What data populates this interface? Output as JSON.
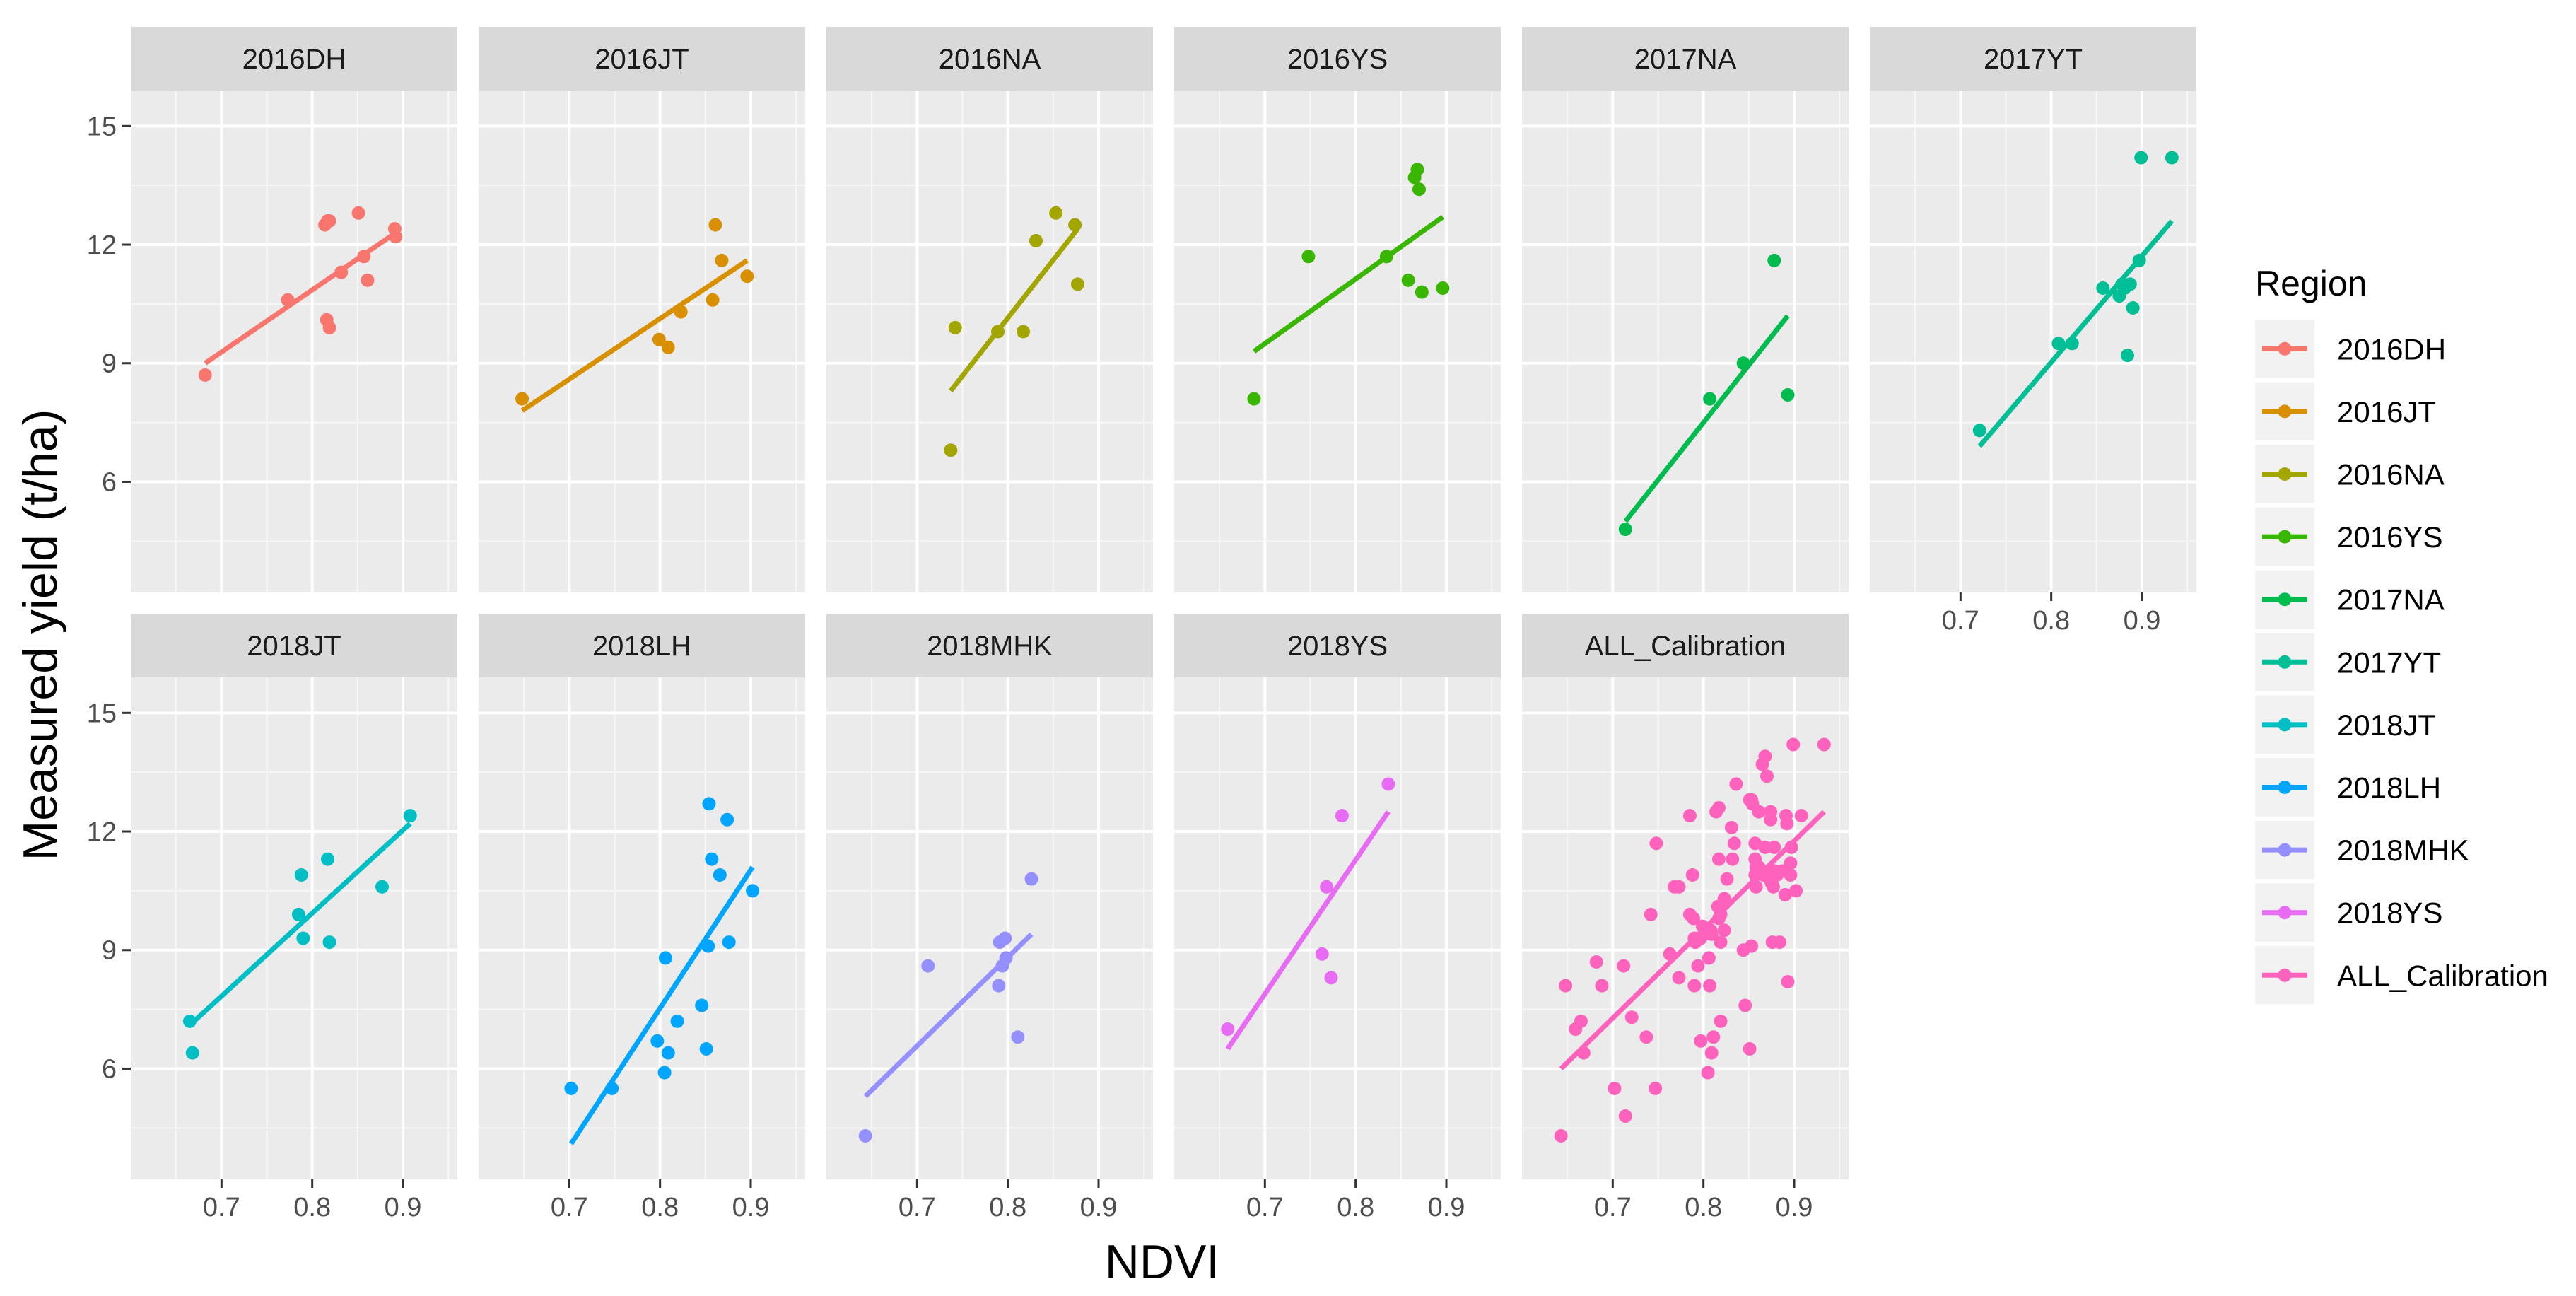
{
  "chart_data": {
    "type": "scatter",
    "xlabel": "NDVI",
    "ylabel": "Measured yield (t/ha)",
    "xlim": [
      0.6,
      0.96
    ],
    "ylim": [
      3.2,
      15.9
    ],
    "x_ticks": [
      0.7,
      0.8,
      0.9
    ],
    "x_tick_labels": [
      "0.7",
      "0.8",
      "0.9"
    ],
    "y_ticks": [
      6,
      9,
      12,
      15
    ],
    "y_tick_labels": [
      "6",
      "9",
      "12",
      "15"
    ],
    "legend": {
      "title": "Region",
      "position": "right"
    },
    "panels": [
      {
        "name": "2016DH",
        "color": "#F8766D",
        "points": [
          [
            0.682,
            8.7
          ],
          [
            0.773,
            10.6
          ],
          [
            0.814,
            12.5
          ],
          [
            0.817,
            12.6
          ],
          [
            0.819,
            12.6
          ],
          [
            0.816,
            10.1
          ],
          [
            0.819,
            9.9
          ],
          [
            0.832,
            11.3
          ],
          [
            0.851,
            12.8
          ],
          [
            0.857,
            11.7
          ],
          [
            0.861,
            11.1
          ],
          [
            0.891,
            12.4
          ],
          [
            0.892,
            12.2
          ]
        ],
        "fit": [
          [
            0.682,
            9.0
          ],
          [
            0.892,
            12.3
          ]
        ]
      },
      {
        "name": "2016JT",
        "color": "#D89000",
        "points": [
          [
            0.648,
            8.1
          ],
          [
            0.799,
            9.6
          ],
          [
            0.809,
            9.4
          ],
          [
            0.823,
            10.3
          ],
          [
            0.858,
            10.6
          ],
          [
            0.861,
            12.5
          ],
          [
            0.868,
            11.6
          ],
          [
            0.896,
            11.2
          ]
        ],
        "fit": [
          [
            0.648,
            7.8
          ],
          [
            0.896,
            11.6
          ]
        ]
      },
      {
        "name": "2016NA",
        "color": "#A3A500",
        "points": [
          [
            0.737,
            6.8
          ],
          [
            0.742,
            9.9
          ],
          [
            0.789,
            9.8
          ],
          [
            0.817,
            9.8
          ],
          [
            0.831,
            12.1
          ],
          [
            0.853,
            12.8
          ],
          [
            0.874,
            12.5
          ],
          [
            0.877,
            11.0
          ]
        ],
        "fit": [
          [
            0.737,
            8.3
          ],
          [
            0.877,
            12.4
          ]
        ]
      },
      {
        "name": "2016YS",
        "color": "#39B600",
        "points": [
          [
            0.688,
            8.1
          ],
          [
            0.748,
            11.7
          ],
          [
            0.834,
            11.7
          ],
          [
            0.858,
            11.1
          ],
          [
            0.865,
            13.7
          ],
          [
            0.868,
            13.9
          ],
          [
            0.87,
            13.4
          ],
          [
            0.873,
            10.8
          ],
          [
            0.896,
            10.9
          ]
        ],
        "fit": [
          [
            0.688,
            9.3
          ],
          [
            0.896,
            12.7
          ]
        ]
      },
      {
        "name": "2017NA",
        "color": "#00BB4E",
        "points": [
          [
            0.714,
            4.8
          ],
          [
            0.807,
            8.1
          ],
          [
            0.844,
            9.0
          ],
          [
            0.878,
            11.6
          ],
          [
            0.893,
            8.2
          ]
        ],
        "fit": [
          [
            0.714,
            5.0
          ],
          [
            0.893,
            10.2
          ]
        ]
      },
      {
        "name": "2017YT",
        "color": "#00BF96",
        "points": [
          [
            0.721,
            7.3
          ],
          [
            0.808,
            9.5
          ],
          [
            0.823,
            9.5
          ],
          [
            0.857,
            10.9
          ],
          [
            0.875,
            10.7
          ],
          [
            0.878,
            11.0
          ],
          [
            0.881,
            10.9
          ],
          [
            0.884,
            9.2
          ],
          [
            0.887,
            11.0
          ],
          [
            0.89,
            10.4
          ],
          [
            0.897,
            11.6
          ],
          [
            0.899,
            14.2
          ],
          [
            0.933,
            14.2
          ]
        ],
        "fit": [
          [
            0.721,
            6.9
          ],
          [
            0.933,
            12.6
          ]
        ]
      },
      {
        "name": "2018JT",
        "color": "#00BFC4",
        "points": [
          [
            0.665,
            7.2
          ],
          [
            0.668,
            6.4
          ],
          [
            0.785,
            9.9
          ],
          [
            0.788,
            10.9
          ],
          [
            0.79,
            9.3
          ],
          [
            0.817,
            11.3
          ],
          [
            0.819,
            9.2
          ],
          [
            0.877,
            10.6
          ],
          [
            0.908,
            12.4
          ]
        ],
        "fit": [
          [
            0.665,
            7.1
          ],
          [
            0.908,
            12.2
          ]
        ]
      },
      {
        "name": "2018LH",
        "color": "#00A5FF",
        "points": [
          [
            0.702,
            5.5
          ],
          [
            0.747,
            5.5
          ],
          [
            0.797,
            6.7
          ],
          [
            0.805,
            5.9
          ],
          [
            0.806,
            8.8
          ],
          [
            0.809,
            6.4
          ],
          [
            0.819,
            7.2
          ],
          [
            0.846,
            7.6
          ],
          [
            0.851,
            6.5
          ],
          [
            0.853,
            9.1
          ],
          [
            0.854,
            12.7
          ],
          [
            0.857,
            11.3
          ],
          [
            0.866,
            10.9
          ],
          [
            0.874,
            12.3
          ],
          [
            0.876,
            9.2
          ],
          [
            0.902,
            10.5
          ]
        ],
        "fit": [
          [
            0.702,
            4.1
          ],
          [
            0.902,
            11.1
          ]
        ]
      },
      {
        "name": "2018MHK",
        "color": "#9590FF",
        "points": [
          [
            0.643,
            4.3
          ],
          [
            0.712,
            8.6
          ],
          [
            0.79,
            8.1
          ],
          [
            0.791,
            9.2
          ],
          [
            0.794,
            8.6
          ],
          [
            0.797,
            9.3
          ],
          [
            0.798,
            8.8
          ],
          [
            0.811,
            6.8
          ],
          [
            0.826,
            10.8
          ]
        ],
        "fit": [
          [
            0.643,
            5.3
          ],
          [
            0.826,
            9.4
          ]
        ]
      },
      {
        "name": "2018YS",
        "color": "#E76BF3",
        "points": [
          [
            0.659,
            7.0
          ],
          [
            0.763,
            8.9
          ],
          [
            0.768,
            10.6
          ],
          [
            0.773,
            8.3
          ],
          [
            0.785,
            12.4
          ],
          [
            0.836,
            13.2
          ]
        ],
        "fit": [
          [
            0.659,
            6.5
          ],
          [
            0.836,
            12.5
          ]
        ]
      },
      {
        "name": "ALL_Calibration",
        "color": "#FF62BC",
        "points": [
          [
            0.643,
            4.3
          ],
          [
            0.648,
            8.1
          ],
          [
            0.659,
            7.0
          ],
          [
            0.665,
            7.2
          ],
          [
            0.668,
            6.4
          ],
          [
            0.682,
            8.7
          ],
          [
            0.688,
            8.1
          ],
          [
            0.702,
            5.5
          ],
          [
            0.712,
            8.6
          ],
          [
            0.714,
            4.8
          ],
          [
            0.721,
            7.3
          ],
          [
            0.737,
            6.8
          ],
          [
            0.742,
            9.9
          ],
          [
            0.747,
            5.5
          ],
          [
            0.748,
            11.7
          ],
          [
            0.763,
            8.9
          ],
          [
            0.768,
            10.6
          ],
          [
            0.773,
            8.3
          ],
          [
            0.773,
            10.6
          ],
          [
            0.785,
            9.9
          ],
          [
            0.785,
            12.4
          ],
          [
            0.788,
            10.9
          ],
          [
            0.789,
            9.8
          ],
          [
            0.79,
            9.3
          ],
          [
            0.79,
            8.1
          ],
          [
            0.791,
            9.2
          ],
          [
            0.794,
            8.6
          ],
          [
            0.797,
            6.7
          ],
          [
            0.797,
            9.3
          ],
          [
            0.799,
            9.6
          ],
          [
            0.805,
            5.9
          ],
          [
            0.806,
            8.8
          ],
          [
            0.807,
            8.1
          ],
          [
            0.808,
            9.5
          ],
          [
            0.809,
            6.4
          ],
          [
            0.809,
            9.4
          ],
          [
            0.811,
            6.8
          ],
          [
            0.814,
            12.5
          ],
          [
            0.816,
            10.1
          ],
          [
            0.817,
            12.6
          ],
          [
            0.817,
            9.8
          ],
          [
            0.817,
            11.3
          ],
          [
            0.819,
            9.9
          ],
          [
            0.819,
            7.2
          ],
          [
            0.819,
            9.2
          ],
          [
            0.823,
            10.3
          ],
          [
            0.823,
            9.5
          ],
          [
            0.826,
            10.8
          ],
          [
            0.831,
            12.1
          ],
          [
            0.832,
            11.3
          ],
          [
            0.834,
            11.7
          ],
          [
            0.836,
            13.2
          ],
          [
            0.844,
            9.0
          ],
          [
            0.846,
            7.6
          ],
          [
            0.851,
            12.8
          ],
          [
            0.851,
            6.5
          ],
          [
            0.853,
            12.8
          ],
          [
            0.853,
            9.1
          ],
          [
            0.854,
            12.7
          ],
          [
            0.857,
            11.7
          ],
          [
            0.857,
            11.3
          ],
          [
            0.857,
            10.9
          ],
          [
            0.858,
            10.6
          ],
          [
            0.858,
            11.1
          ],
          [
            0.861,
            11.1
          ],
          [
            0.861,
            12.5
          ],
          [
            0.865,
            13.7
          ],
          [
            0.866,
            10.9
          ],
          [
            0.868,
            11.6
          ],
          [
            0.868,
            13.9
          ],
          [
            0.87,
            13.4
          ],
          [
            0.873,
            10.8
          ],
          [
            0.874,
            12.3
          ],
          [
            0.874,
            12.5
          ],
          [
            0.875,
            10.7
          ],
          [
            0.876,
            9.2
          ],
          [
            0.877,
            11.0
          ],
          [
            0.877,
            10.6
          ],
          [
            0.878,
            11.6
          ],
          [
            0.878,
            11.0
          ],
          [
            0.881,
            10.9
          ],
          [
            0.884,
            9.2
          ],
          [
            0.887,
            11.0
          ],
          [
            0.89,
            10.4
          ],
          [
            0.891,
            12.4
          ],
          [
            0.892,
            12.2
          ],
          [
            0.893,
            8.2
          ],
          [
            0.896,
            11.2
          ],
          [
            0.896,
            10.9
          ],
          [
            0.897,
            11.6
          ],
          [
            0.899,
            14.2
          ],
          [
            0.902,
            10.5
          ],
          [
            0.908,
            12.4
          ],
          [
            0.933,
            14.2
          ]
        ],
        "fit": [
          [
            0.643,
            6.0
          ],
          [
            0.933,
            12.5
          ]
        ]
      }
    ]
  }
}
